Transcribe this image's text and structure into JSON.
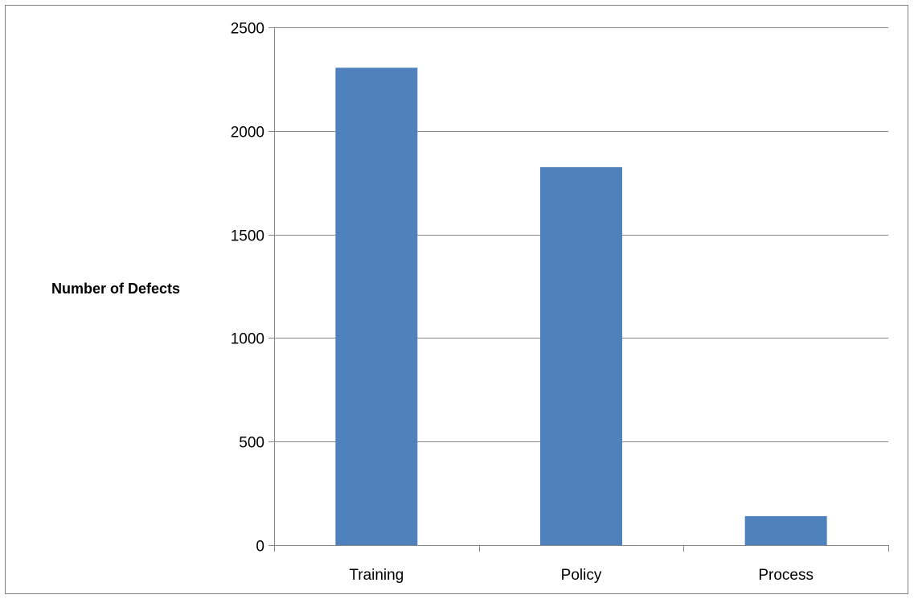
{
  "chart_data": {
    "type": "bar",
    "title": "",
    "xlabel": "",
    "ylabel": "Number of Defects",
    "categories": [
      "Training",
      "Policy",
      "Process"
    ],
    "values": [
      2305,
      1825,
      140
    ],
    "ylim": [
      0,
      2500
    ],
    "yticks": [
      0,
      500,
      1000,
      1500,
      2000,
      2500
    ],
    "grid": true,
    "legend": "none",
    "colors": {
      "bar": "#4F81BD",
      "grid": "#868686",
      "axis": "#868686",
      "border": "#808080"
    }
  }
}
